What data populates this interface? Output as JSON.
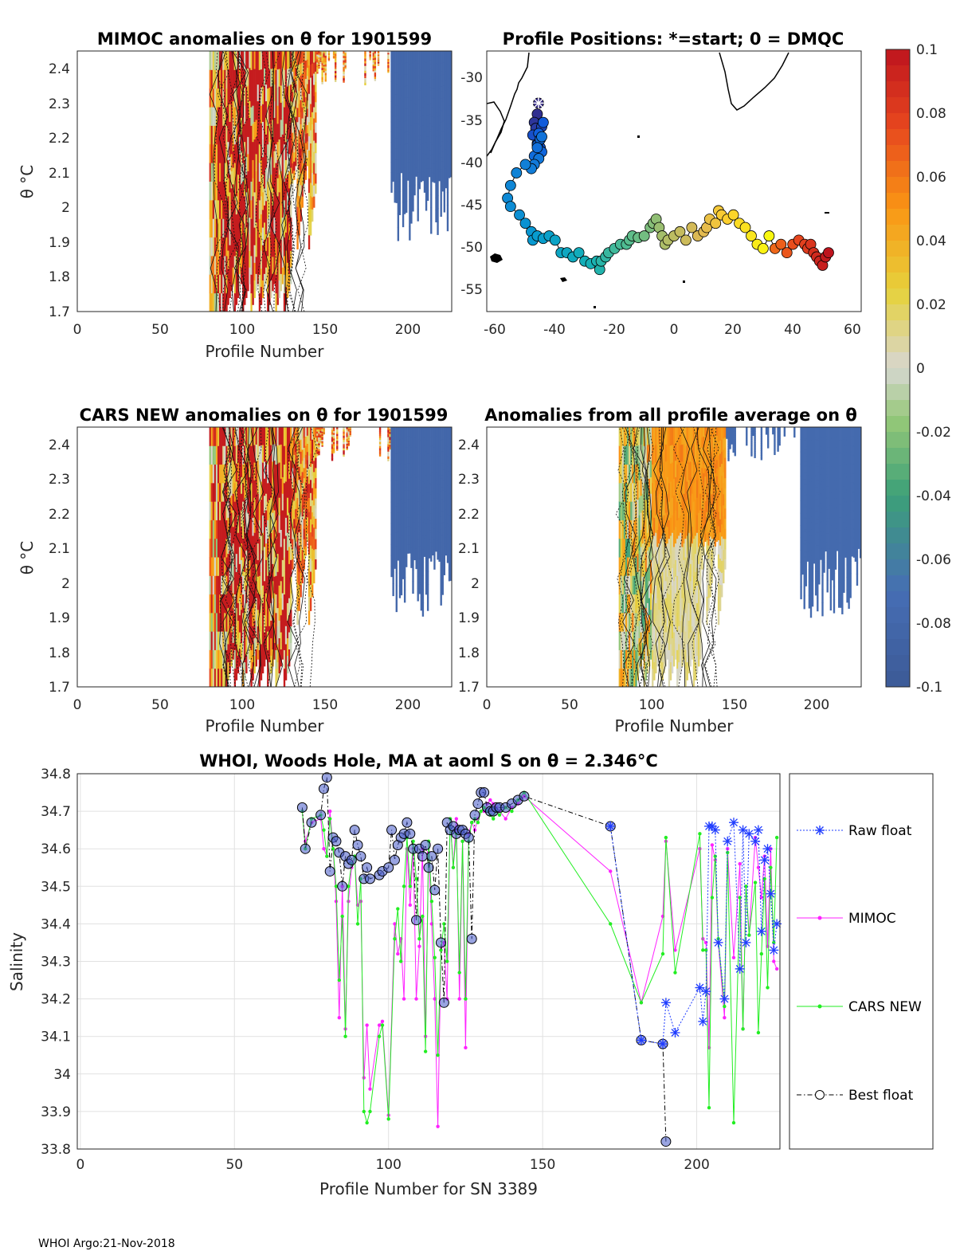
{
  "footer": "WHOI Argo:21-Nov-2018",
  "colors": {
    "raw": "#1f3cff",
    "mimoc": "#ff22ff",
    "cars": "#22ee22",
    "best": "#000000"
  },
  "colorbar": {
    "ticks": [
      "0.1",
      "0.08",
      "0.06",
      "0.04",
      "0.02",
      "0",
      "-0.02",
      "-0.04",
      "-0.06",
      "-0.08",
      "-0.1"
    ]
  },
  "chart_data": [
    {
      "id": "mimoc",
      "type": "heatmap",
      "title": "MIMOC anomalies on θ  for 1901599",
      "xlabel": "Profile Number",
      "ylabel": "θ °C",
      "xlim": [
        0,
        227
      ],
      "ylim": [
        1.7,
        2.45
      ],
      "xticks": [
        "0",
        "50",
        "100",
        "150",
        "200"
      ],
      "yticks": [
        "1.7",
        "1.8",
        "1.9",
        "2",
        "2.1",
        "2.2",
        "2.3",
        "2.4"
      ]
    },
    {
      "id": "positions",
      "type": "scatter",
      "title": "Profile Positions: *=start; 0 = DMQC",
      "xlabel": "",
      "ylabel": "",
      "xlim": [
        -63,
        63
      ],
      "ylim": [
        -58,
        -27
      ],
      "xticks": [
        "-60",
        "-40",
        "-20",
        "0",
        "20",
        "40",
        "60"
      ],
      "yticks": [
        "-30",
        "-35",
        "-40",
        "-45",
        "-50",
        "-55"
      ],
      "track_lon": [
        -45.6,
        -46,
        -47,
        -46.5,
        -45,
        -44.5,
        -46,
        -47.5,
        -45,
        -44,
        -45.5,
        -46,
        -44.5,
        -45,
        -47,
        -46,
        -44.5,
        -45.5,
        -47,
        -48,
        -50,
        -53,
        -55,
        -56,
        -55,
        -52,
        -50,
        -48,
        -47.5,
        -46,
        -44,
        -42,
        -40,
        -38,
        -36,
        -34,
        -32,
        -30,
        -28,
        -26,
        -25,
        -24.5,
        -23,
        -22,
        -20,
        -18,
        -16,
        -15,
        -14,
        -12,
        -10,
        -8,
        -7,
        -6,
        -5,
        -4,
        -3,
        -2,
        0,
        2,
        4,
        6,
        8,
        10,
        11,
        12,
        14,
        15,
        16,
        18,
        20,
        22,
        24,
        26,
        28,
        30,
        32,
        34,
        36,
        38,
        40,
        42,
        44,
        45,
        46,
        47,
        48,
        49,
        50,
        51,
        52
      ],
      "track_lat": [
        -33.2,
        -34.5,
        -35.5,
        -36.2,
        -37.5,
        -36,
        -38,
        -37,
        -38.5,
        -35.5,
        -36.8,
        -38.2,
        -39,
        -37.5,
        -39.5,
        -38.5,
        -37.2,
        -39.8,
        -40.5,
        -41,
        -40.5,
        -41.5,
        -43,
        -44.5,
        -45.5,
        -46.5,
        -47.5,
        -48.5,
        -49.5,
        -49,
        -49.3,
        -49,
        -49.5,
        -51,
        -51,
        -51.5,
        -51,
        -52,
        -52.3,
        -52,
        -53,
        -52,
        -51.5,
        -51,
        -50.5,
        -50,
        -50,
        -49.5,
        -49,
        -49.2,
        -49,
        -48,
        -47.5,
        -47,
        -48,
        -49,
        -50,
        -49.5,
        -49,
        -48.5,
        -49.5,
        -48,
        -49,
        -48.5,
        -48,
        -47,
        -47.5,
        -46,
        -46.5,
        -47,
        -46.5,
        -47.5,
        -48,
        -49,
        -50,
        -50.5,
        -49,
        -50.5,
        -50,
        -51,
        -50,
        -49.5,
        -50,
        -50.5,
        -50,
        -51,
        -51.5,
        -52,
        -52.5,
        -51.5,
        -51
      ]
    },
    {
      "id": "cars",
      "type": "heatmap",
      "title": "CARS NEW anomalies on θ for 1901599",
      "xlabel": "Profile Number",
      "ylabel": "θ °C",
      "xlim": [
        0,
        227
      ],
      "ylim": [
        1.7,
        2.45
      ],
      "xticks": [
        "0",
        "50",
        "100",
        "150",
        "200"
      ],
      "yticks": [
        "1.7",
        "1.8",
        "1.9",
        "2",
        "2.1",
        "2.2",
        "2.3",
        "2.4"
      ]
    },
    {
      "id": "allavg",
      "type": "heatmap",
      "title": "Anomalies from all profile average on θ",
      "xlabel": "Profile Number",
      "ylabel": "",
      "xlim": [
        0,
        227
      ],
      "ylim": [
        1.7,
        2.45
      ],
      "xticks": [
        "0",
        "50",
        "100",
        "150",
        "200"
      ],
      "yticks": [
        "1.7",
        "1.8",
        "1.9",
        "2",
        "2.1",
        "2.2",
        "2.3",
        "2.4"
      ]
    },
    {
      "id": "salinity",
      "type": "line",
      "title": "WHOI, Woods Hole, MA at aoml S on θ = 2.346°C",
      "xlabel": "Profile Number for SN 3389",
      "ylabel": "Salinity",
      "xlim": [
        -1,
        227
      ],
      "ylim": [
        33.8,
        34.8
      ],
      "xticks": [
        0,
        50,
        100,
        150,
        200
      ],
      "yticks": [
        33.8,
        33.9,
        34,
        34.1,
        34.2,
        34.3,
        34.4,
        34.5,
        34.6,
        34.7,
        34.8
      ],
      "legend": [
        "Raw float",
        "MIMOC",
        "CARS NEW",
        "Best float"
      ],
      "series": [
        {
          "name": "Raw float",
          "x": [
            172,
            182,
            189,
            190,
            193,
            201,
            202,
            203,
            204,
            205,
            206,
            207,
            209,
            210,
            212,
            214,
            215,
            216,
            217,
            219,
            220,
            221,
            222,
            223,
            224,
            225,
            226
          ],
          "values": [
            34.66,
            34.09,
            34.08,
            34.19,
            34.11,
            34.23,
            34.14,
            34.22,
            34.66,
            34.66,
            34.65,
            34.35,
            34.2,
            34.62,
            34.67,
            34.28,
            34.65,
            34.35,
            34.64,
            34.62,
            34.65,
            34.38,
            34.57,
            34.6,
            34.48,
            34.33,
            34.4
          ]
        },
        {
          "name": "MIMOC",
          "x": [
            72,
            73,
            75,
            78,
            79,
            80,
            81,
            82,
            83,
            84,
            85,
            86,
            87,
            88,
            89,
            90,
            91,
            92,
            93,
            94,
            97,
            98,
            100,
            102,
            103,
            104,
            105,
            106,
            107,
            108,
            109,
            110,
            111,
            112,
            113,
            114,
            115,
            116,
            117,
            118,
            119,
            120,
            121,
            122,
            123,
            124,
            125,
            126,
            127,
            128,
            129,
            130,
            131,
            132,
            133,
            134,
            135,
            136,
            138,
            140,
            142,
            144,
            172,
            182,
            189,
            190,
            193,
            201,
            202,
            203,
            204,
            205,
            206,
            207,
            209,
            210,
            212,
            214,
            215,
            216,
            217,
            219,
            220,
            221,
            222,
            223,
            224,
            225,
            226
          ],
          "values": [
            34.7,
            34.62,
            34.67,
            34.68,
            34.6,
            34.58,
            34.7,
            34.6,
            34.46,
            34.15,
            34.5,
            34.12,
            34.46,
            34.55,
            34.58,
            34.45,
            34.46,
            33.99,
            34.13,
            33.96,
            34.13,
            34.14,
            33.89,
            34.4,
            34.32,
            34.36,
            34.2,
            34.6,
            34.45,
            34.6,
            34.2,
            34.34,
            34.6,
            34.1,
            34.59,
            34.4,
            34.2,
            33.86,
            34.33,
            34.35,
            34.2,
            34.68,
            34.55,
            34.68,
            34.2,
            34.62,
            34.07,
            34.64,
            34.67,
            34.65,
            34.68,
            34.7,
            34.7,
            34.72,
            34.73,
            34.72,
            34.71,
            34.7,
            34.68,
            34.71,
            34.72,
            34.74,
            34.54,
            34.19,
            34.42,
            34.62,
            34.33,
            34.6,
            34.36,
            34.35,
            34.07,
            34.61,
            34.57,
            34.35,
            34.15,
            34.6,
            34.31,
            34.56,
            34.12,
            34.5,
            34.37,
            34.63,
            34.55,
            34.47,
            34.58,
            34.34,
            34.6,
            34.3,
            34.28
          ]
        },
        {
          "name": "CARS NEW",
          "x": [
            72,
            73,
            75,
            78,
            79,
            80,
            81,
            82,
            83,
            84,
            85,
            86,
            87,
            88,
            89,
            90,
            91,
            92,
            93,
            94,
            97,
            98,
            100,
            102,
            103,
            104,
            105,
            106,
            107,
            108,
            109,
            110,
            111,
            112,
            113,
            114,
            115,
            116,
            117,
            118,
            119,
            120,
            121,
            122,
            123,
            124,
            125,
            126,
            127,
            128,
            129,
            130,
            131,
            132,
            133,
            134,
            135,
            136,
            138,
            140,
            142,
            144,
            172,
            182,
            189,
            190,
            193,
            201,
            202,
            203,
            204,
            205,
            206,
            207,
            209,
            210,
            212,
            214,
            215,
            216,
            217,
            219,
            220,
            221,
            222,
            223,
            224,
            225,
            226
          ],
          "values": [
            34.7,
            34.6,
            34.68,
            34.69,
            34.65,
            34.58,
            34.68,
            34.6,
            34.5,
            34.25,
            34.42,
            34.1,
            34.5,
            34.56,
            34.58,
            34.4,
            34.52,
            33.9,
            33.87,
            33.9,
            34.1,
            34.13,
            33.88,
            34.36,
            34.44,
            34.3,
            34.5,
            34.63,
            34.5,
            34.62,
            34.52,
            34.36,
            34.42,
            34.06,
            34.62,
            34.46,
            34.31,
            34.05,
            34.33,
            34.4,
            34.3,
            34.68,
            34.55,
            34.64,
            34.27,
            34.62,
            34.2,
            34.62,
            34.67,
            34.68,
            34.67,
            34.7,
            34.71,
            34.7,
            34.69,
            34.68,
            34.7,
            34.69,
            34.71,
            34.7,
            34.73,
            34.75,
            34.4,
            34.19,
            34.32,
            34.63,
            34.27,
            34.64,
            34.33,
            34.33,
            33.91,
            34.47,
            34.58,
            34.36,
            34.18,
            34.59,
            33.87,
            34.47,
            34.12,
            34.5,
            34.37,
            34.51,
            34.11,
            34.32,
            34.52,
            34.23,
            34.55,
            34.35,
            34.63
          ]
        },
        {
          "name": "Best float",
          "x": [
            72,
            73,
            75,
            78,
            79,
            80,
            81,
            82,
            83,
            84,
            85,
            86,
            87,
            88,
            89,
            90,
            91,
            92,
            93,
            94,
            97,
            98,
            100,
            101,
            102,
            103,
            104,
            105,
            106,
            107,
            108,
            109,
            110,
            111,
            112,
            113,
            114,
            115,
            116,
            117,
            118,
            119,
            120,
            121,
            122,
            123,
            124,
            125,
            126,
            127,
            128,
            129,
            130,
            131,
            132,
            133,
            134,
            135,
            136,
            138,
            140,
            142,
            144,
            172,
            182,
            189,
            190
          ],
          "values": [
            34.71,
            34.6,
            34.67,
            34.69,
            34.76,
            34.79,
            34.54,
            34.63,
            34.62,
            34.59,
            34.5,
            34.58,
            34.56,
            34.57,
            34.65,
            34.61,
            34.58,
            34.52,
            34.55,
            34.52,
            34.53,
            34.54,
            34.55,
            34.65,
            34.57,
            34.61,
            34.63,
            34.64,
            34.67,
            34.64,
            34.6,
            34.41,
            34.6,
            34.58,
            34.61,
            34.55,
            34.58,
            34.49,
            34.6,
            34.35,
            34.19,
            34.67,
            34.65,
            34.66,
            34.64,
            34.65,
            34.65,
            34.64,
            34.63,
            34.36,
            34.69,
            34.72,
            34.75,
            34.75,
            34.71,
            34.7,
            34.7,
            34.71,
            34.71,
            34.71,
            34.72,
            34.73,
            34.74,
            34.66,
            34.09,
            34.08,
            33.82
          ]
        }
      ]
    }
  ]
}
